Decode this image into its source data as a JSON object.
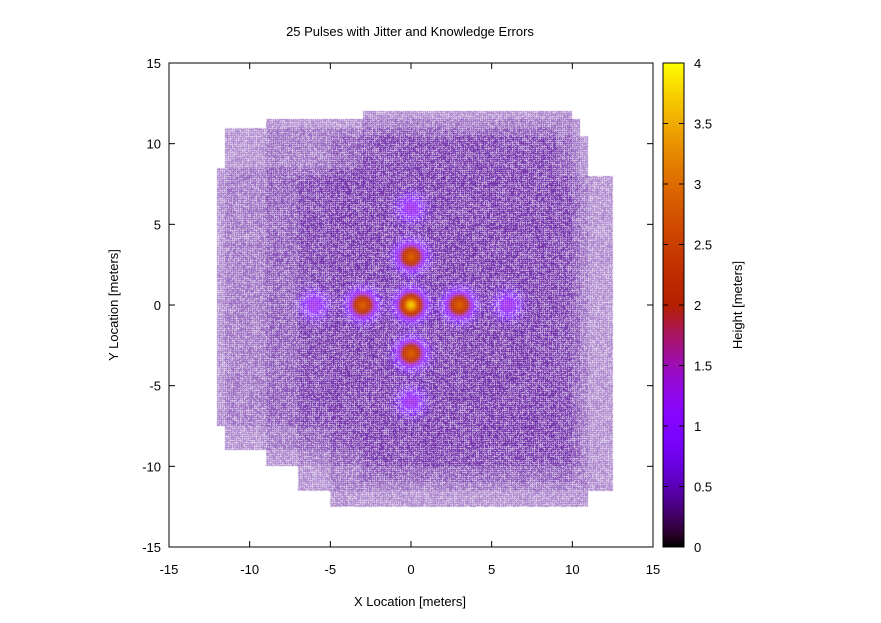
{
  "chart_data": {
    "type": "heatmap",
    "title": "25 Pulses with Jitter and Knowledge Errors",
    "xlabel": "X Location [meters]",
    "ylabel": "Y Location [meters]",
    "xlim": [
      -15,
      15
    ],
    "ylim": [
      -15,
      15
    ],
    "x_ticks": [
      -15,
      -10,
      -5,
      0,
      5,
      10,
      15
    ],
    "y_ticks": [
      -15,
      -10,
      -5,
      0,
      5,
      10,
      15
    ],
    "grid": false,
    "colorbar": {
      "label": "Height [meters]",
      "range": [
        0,
        4
      ],
      "ticks": [
        0,
        0.5,
        1,
        1.5,
        2,
        2.5,
        3,
        3.5,
        4
      ],
      "tick_labels": [
        "0",
        "0.5",
        "1",
        "1.5",
        "2",
        "2.5",
        "3",
        "3.5",
        "4"
      ],
      "colormap": "gnuplot"
    },
    "background_level": 0.4,
    "coverage_regions": [
      {
        "x": [
          -12,
          8
        ],
        "y": [
          -7.5,
          8.5
        ]
      },
      {
        "x": [
          -11.5,
          9
        ],
        "y": [
          -9,
          11
        ]
      },
      {
        "x": [
          -9,
          10.5
        ],
        "y": [
          -10,
          11.5
        ]
      },
      {
        "x": [
          -7,
          12.5
        ],
        "y": [
          -11.5,
          8
        ]
      },
      {
        "x": [
          -5,
          11
        ],
        "y": [
          -12.5,
          10.5
        ]
      },
      {
        "x": [
          -3,
          10
        ],
        "y": [
          -11,
          12
        ]
      }
    ],
    "peaks": [
      {
        "x": 0,
        "y": 0,
        "height": 3.7
      },
      {
        "x": -3,
        "y": 0,
        "height": 2.9
      },
      {
        "x": 3,
        "y": 0,
        "height": 2.9
      },
      {
        "x": 0,
        "y": 3,
        "height": 2.9
      },
      {
        "x": 0,
        "y": -3,
        "height": 2.9
      },
      {
        "x": -6,
        "y": 0,
        "height": 1.3
      },
      {
        "x": 6,
        "y": 0,
        "height": 1.3
      },
      {
        "x": 0,
        "y": 6,
        "height": 1.3
      },
      {
        "x": 0,
        "y": -6,
        "height": 1.3
      }
    ]
  }
}
